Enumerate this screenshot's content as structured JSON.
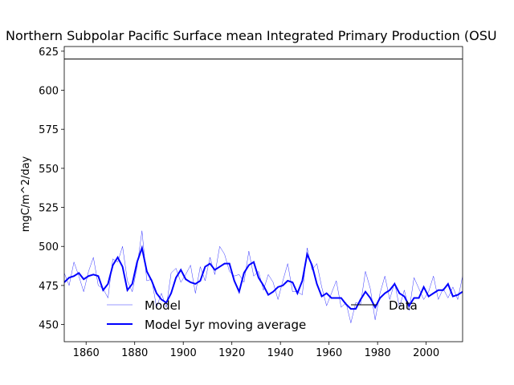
{
  "chart_data": {
    "type": "line",
    "title": "Northern Subpolar Pacific Surface mean Integrated Primary Production (OSU",
    "ylabel": "mgC/m^2/day",
    "xlim": [
      1851,
      2015
    ],
    "xticks": [
      1860,
      1880,
      1900,
      1920,
      1940,
      1960,
      1980,
      2000
    ],
    "ylim": [
      439,
      628
    ],
    "yticks": [
      450,
      475,
      500,
      525,
      550,
      575,
      600,
      625
    ],
    "legend": {
      "loc": "lower center",
      "ncol": 2,
      "frame": false
    },
    "series": [
      {
        "name": "Model",
        "color": "#0000ff",
        "linewidth": 0.4,
        "x": [
          1851,
          1853,
          1855,
          1857,
          1859,
          1861,
          1863,
          1865,
          1867,
          1869,
          1871,
          1873,
          1875,
          1877,
          1879,
          1881,
          1883,
          1885,
          1887,
          1889,
          1891,
          1893,
          1895,
          1897,
          1899,
          1901,
          1903,
          1905,
          1907,
          1909,
          1911,
          1913,
          1915,
          1917,
          1919,
          1921,
          1923,
          1925,
          1927,
          1929,
          1931,
          1933,
          1935,
          1937,
          1939,
          1941,
          1943,
          1945,
          1947,
          1949,
          1951,
          1953,
          1955,
          1957,
          1959,
          1961,
          1963,
          1965,
          1967,
          1969,
          1971,
          1973,
          1975,
          1977,
          1979,
          1981,
          1983,
          1985,
          1987,
          1989,
          1991,
          1993,
          1995,
          1997,
          1999,
          2001,
          2003,
          2005,
          2007,
          2009,
          2011,
          2013,
          2015
        ],
        "values": [
          483,
          475,
          490,
          481,
          471,
          484,
          493,
          475,
          473,
          467,
          492,
          490,
          500,
          478,
          471,
          487,
          510,
          478,
          479,
          461,
          470,
          461,
          483,
          486,
          477,
          482,
          488,
          470,
          487,
          478,
          493,
          482,
          500,
          495,
          484,
          481,
          482,
          477,
          497,
          481,
          484,
          472,
          482,
          477,
          466,
          478,
          489,
          471,
          471,
          469,
          499,
          485,
          489,
          474,
          462,
          470,
          478,
          461,
          464,
          451,
          464,
          463,
          484,
          473,
          453,
          470,
          481,
          466,
          477,
          461,
          472,
          459,
          480,
          473,
          466,
          471,
          481,
          466,
          473,
          467,
          474,
          466,
          481
        ]
      },
      {
        "name": "Model 5yr moving average",
        "color": "#0000ff",
        "linewidth": 2,
        "x": [
          1851,
          1853,
          1855,
          1857,
          1859,
          1861,
          1863,
          1865,
          1867,
          1869,
          1871,
          1873,
          1875,
          1877,
          1879,
          1881,
          1883,
          1885,
          1887,
          1889,
          1891,
          1893,
          1895,
          1897,
          1899,
          1901,
          1903,
          1905,
          1907,
          1909,
          1911,
          1913,
          1915,
          1917,
          1919,
          1921,
          1923,
          1925,
          1927,
          1929,
          1931,
          1933,
          1935,
          1937,
          1939,
          1941,
          1943,
          1945,
          1947,
          1949,
          1951,
          1953,
          1955,
          1957,
          1959,
          1961,
          1963,
          1965,
          1967,
          1969,
          1971,
          1973,
          1975,
          1977,
          1979,
          1981,
          1983,
          1985,
          1987,
          1989,
          1991,
          1993,
          1995,
          1997,
          1999,
          2001,
          2003,
          2005,
          2007,
          2009,
          2011,
          2013,
          2015
        ],
        "values": [
          477,
          480,
          481,
          483,
          479,
          481,
          482,
          481,
          472,
          476,
          488,
          493,
          487,
          472,
          476,
          490,
          499,
          484,
          478,
          470,
          466,
          464,
          470,
          480,
          485,
          479,
          477,
          476,
          478,
          487,
          489,
          485,
          487,
          489,
          489,
          478,
          471,
          483,
          488,
          490,
          480,
          475,
          469,
          471,
          474,
          475,
          478,
          477,
          470,
          478,
          495,
          488,
          476,
          468,
          470,
          467,
          467,
          467,
          463,
          460,
          460,
          466,
          471,
          467,
          461,
          467,
          470,
          472,
          476,
          470,
          468,
          462,
          467,
          467,
          474,
          468,
          470,
          472,
          472,
          476,
          468,
          469,
          471
        ]
      },
      {
        "name": "Data",
        "color": "#000000",
        "linewidth": 1,
        "x": [
          1851,
          2015
        ],
        "values": [
          620,
          620
        ]
      }
    ]
  }
}
